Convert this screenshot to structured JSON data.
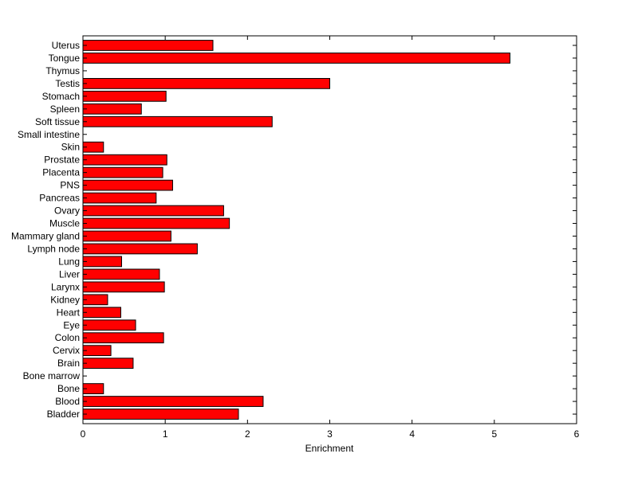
{
  "chart_data": {
    "type": "bar",
    "orientation": "horizontal",
    "title": "",
    "xlabel": "Enrichment",
    "ylabel": "",
    "xlim": [
      0,
      6
    ],
    "xticks": [
      "0",
      "1",
      "2",
      "3",
      "4",
      "5",
      "6"
    ],
    "grid": false,
    "legend": "none",
    "bar_color": "#ff0000",
    "bar_edge_color": "#000000",
    "categories": [
      "Uterus",
      "Tongue",
      "Thymus",
      "Testis",
      "Stomach",
      "Spleen",
      "Soft tissue",
      "Small intestine",
      "Skin",
      "Prostate",
      "Placenta",
      "PNS",
      "Pancreas",
      "Ovary",
      "Muscle",
      "Mammary gland",
      "Lymph node",
      "Lung",
      "Liver",
      "Larynx",
      "Kidney",
      "Heart",
      "Eye",
      "Colon",
      "Cervix",
      "Brain",
      "Bone marrow",
      "Bone",
      "Blood",
      "Bladder"
    ],
    "values": [
      1.58,
      5.19,
      0,
      3.0,
      1.01,
      0.71,
      2.3,
      0,
      0.25,
      1.02,
      0.97,
      1.09,
      0.89,
      1.71,
      1.78,
      1.07,
      1.39,
      0.47,
      0.93,
      0.99,
      0.3,
      0.46,
      0.64,
      0.98,
      0.34,
      0.61,
      0,
      0.25,
      2.19,
      1.89
    ]
  }
}
